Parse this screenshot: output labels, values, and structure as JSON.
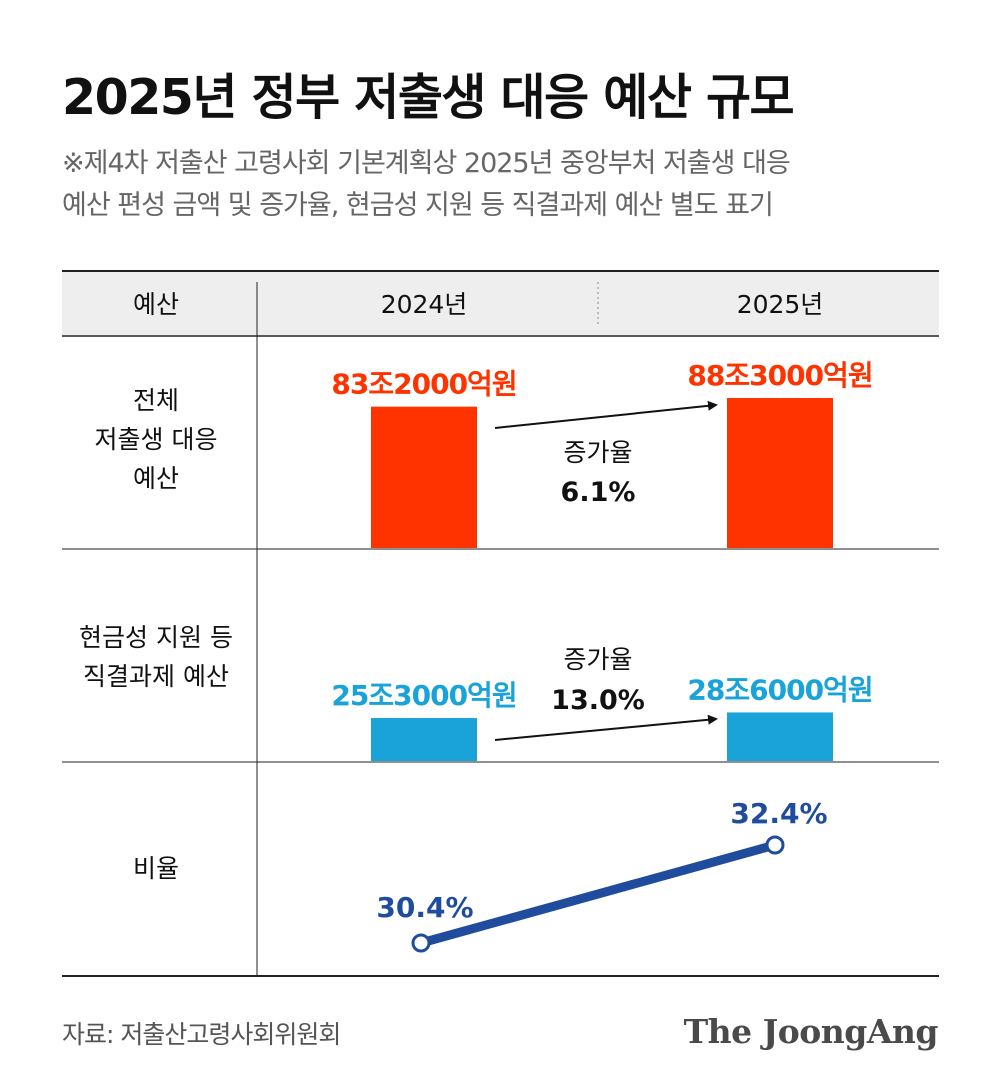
{
  "title": "2025년 정부 저출생 대응 예산 규모",
  "subtitle": {
    "line1": "※제4차 저출산 고령사회 기본계획상 2025년 중앙부처 저출생 대응",
    "line2": "예산 편성 금액 및 증가율, 현금성 지원 등 직결과제 예산 별도 표기"
  },
  "source": "자료: 저출산고령사회위원회",
  "logo": "The JoongAng",
  "colors": {
    "header_bg": "#eeeeee",
    "total_bar": "#ff3300",
    "cash_bar": "#1aa3d9",
    "ratio_line": "#1f4c9c",
    "text": "#111111"
  },
  "chart_data": {
    "type": "table",
    "header": {
      "row_label": "예산",
      "years": [
        "2024년",
        "2025년"
      ]
    },
    "rows": [
      {
        "label_lines": [
          "전체",
          "저출생 대응",
          "예산"
        ],
        "kind": "bar",
        "color": "#ff3300",
        "values": [
          83.2,
          88.3
        ],
        "unit": "조원",
        "value_labels": [
          "83조2000억원",
          "88조3000억원"
        ],
        "growth_label": "증가율",
        "growth_value": "6.1%"
      },
      {
        "label_lines": [
          "현금성 지원 등",
          "직결과제 예산"
        ],
        "kind": "bar",
        "color": "#1aa3d9",
        "values": [
          25.3,
          28.6
        ],
        "unit": "조원",
        "value_labels": [
          "25조3000억원",
          "28조6000억원"
        ],
        "growth_label": "증가율",
        "growth_value": "13.0%"
      },
      {
        "label_lines": [
          "비율"
        ],
        "kind": "line",
        "color": "#1f4c9c",
        "values": [
          30.4,
          32.4
        ],
        "unit": "%",
        "value_labels": [
          "30.4%",
          "32.4%"
        ]
      }
    ]
  }
}
